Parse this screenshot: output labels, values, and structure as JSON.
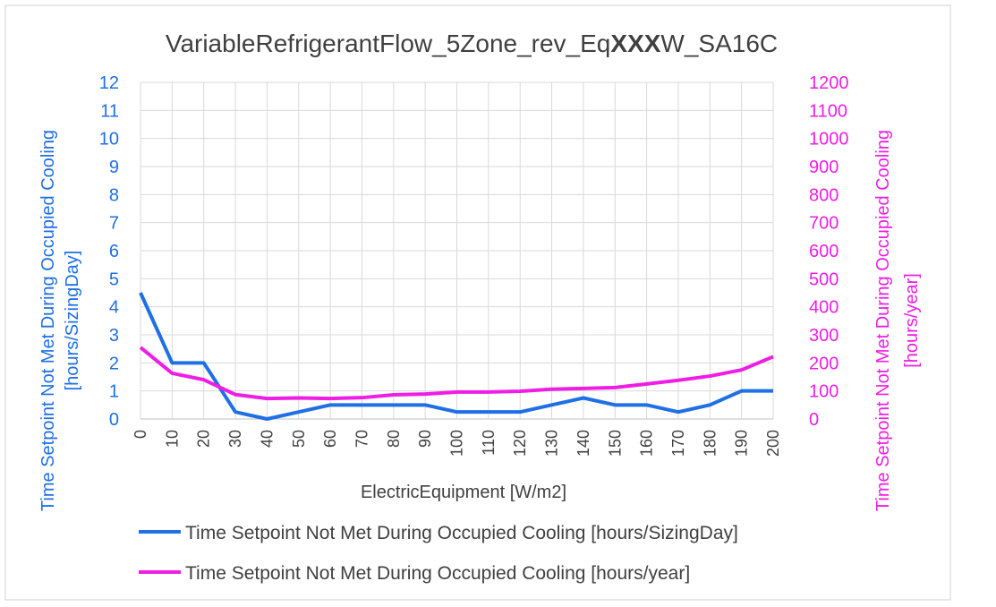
{
  "chart_data": {
    "type": "line",
    "title": {
      "prefix": "VariableRefrigerantFlow_5Zone_rev_Eq",
      "bold": "XXX",
      "suffix": "W_SA16C"
    },
    "xlabel": "ElectricEquipment [W/m2]",
    "ylabel_left": [
      "Time Setpoint Not Met During Occupied Cooling",
      "[hours/SizingDay]"
    ],
    "ylabel_right": [
      "Time Setpoint Not Met During Occupied Cooling",
      "[hours/year]"
    ],
    "x": [
      0,
      10,
      20,
      30,
      40,
      50,
      60,
      70,
      80,
      90,
      100,
      110,
      120,
      130,
      140,
      150,
      160,
      170,
      180,
      190,
      200
    ],
    "ylim_left": [
      0,
      12
    ],
    "ylim_right": [
      0,
      1200
    ],
    "yticks_left": [
      0,
      1,
      2,
      3,
      4,
      5,
      6,
      7,
      8,
      9,
      10,
      11,
      12
    ],
    "yticks_right": [
      0,
      100,
      200,
      300,
      400,
      500,
      600,
      700,
      800,
      900,
      1000,
      1100,
      1200
    ],
    "grid": true,
    "legend_position": "bottom",
    "series": [
      {
        "name": "Time Setpoint Not Met During Occupied Cooling [hours/SizingDay]",
        "axis": "left",
        "color": "#1f6fe5",
        "values": [
          4.5,
          2,
          2,
          0.25,
          0,
          0.25,
          0.5,
          0.5,
          0.5,
          0.5,
          0.25,
          0.25,
          0.25,
          0.5,
          0.75,
          0.5,
          0.5,
          0.25,
          0.5,
          1,
          1
        ]
      },
      {
        "name": "Time Setpoint Not Met During Occupied Cooling [hours/year]",
        "axis": "right",
        "color": "#ee1ee4",
        "values": [
          255,
          163,
          140,
          87,
          73,
          75,
          73,
          76,
          86,
          89,
          96,
          96,
          99,
          106,
          109,
          112,
          125,
          138,
          153,
          175,
          222
        ]
      }
    ]
  }
}
